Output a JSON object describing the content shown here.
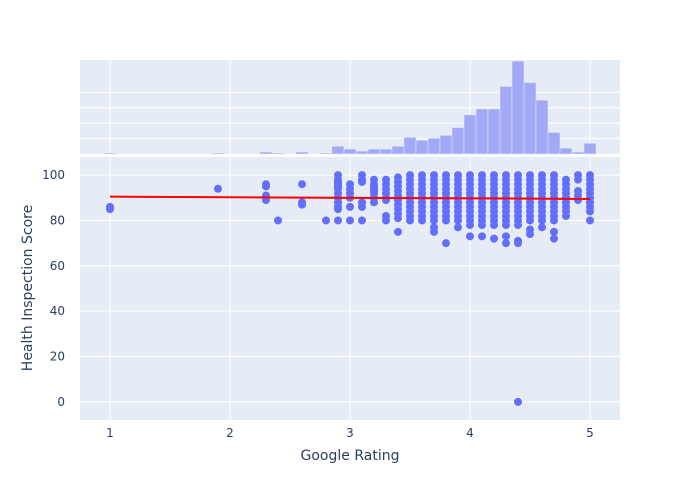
{
  "chart_data": {
    "type": "scatter",
    "xlabel": "Google Rating",
    "ylabel": "Health Inspection Score",
    "xlim": [
      0.75,
      5.25
    ],
    "ylim": [
      -8,
      108
    ],
    "x_ticks": [
      1,
      2,
      3,
      4,
      5
    ],
    "y_ticks": [
      0,
      20,
      40,
      60,
      80,
      100
    ],
    "grid": true,
    "legend": "none",
    "series": [
      {
        "type": "scatter",
        "points": [
          [
            1.0,
            86
          ],
          [
            1.0,
            85
          ],
          [
            1.9,
            94
          ],
          [
            2.3,
            96
          ],
          [
            2.3,
            95
          ],
          [
            2.3,
            91
          ],
          [
            2.3,
            89
          ],
          [
            2.4,
            80
          ],
          [
            2.6,
            96
          ],
          [
            2.6,
            88
          ],
          [
            2.6,
            87
          ],
          [
            2.8,
            80
          ],
          [
            2.9,
            100
          ],
          [
            2.9,
            98
          ],
          [
            2.9,
            97
          ],
          [
            2.9,
            96
          ],
          [
            2.9,
            95
          ],
          [
            2.9,
            94
          ],
          [
            2.9,
            92
          ],
          [
            2.9,
            90
          ],
          [
            2.9,
            88
          ],
          [
            2.9,
            86
          ],
          [
            2.9,
            85
          ],
          [
            2.9,
            80
          ],
          [
            3.0,
            96
          ],
          [
            3.0,
            94
          ],
          [
            3.0,
            92
          ],
          [
            3.0,
            90
          ],
          [
            3.0,
            86
          ],
          [
            3.0,
            80
          ],
          [
            3.1,
            100
          ],
          [
            3.1,
            98
          ],
          [
            3.1,
            97
          ],
          [
            3.1,
            88
          ],
          [
            3.1,
            86
          ],
          [
            3.1,
            80
          ],
          [
            3.2,
            98
          ],
          [
            3.2,
            96
          ],
          [
            3.2,
            95
          ],
          [
            3.2,
            94
          ],
          [
            3.2,
            93
          ],
          [
            3.2,
            92
          ],
          [
            3.2,
            90
          ],
          [
            3.2,
            88
          ],
          [
            3.3,
            98
          ],
          [
            3.3,
            96
          ],
          [
            3.3,
            94
          ],
          [
            3.3,
            92
          ],
          [
            3.3,
            90
          ],
          [
            3.3,
            89
          ],
          [
            3.3,
            82
          ],
          [
            3.3,
            80
          ],
          [
            3.4,
            99
          ],
          [
            3.4,
            97
          ],
          [
            3.4,
            95
          ],
          [
            3.4,
            93
          ],
          [
            3.4,
            91
          ],
          [
            3.4,
            89
          ],
          [
            3.4,
            87
          ],
          [
            3.4,
            85
          ],
          [
            3.4,
            83
          ],
          [
            3.4,
            81
          ],
          [
            3.4,
            75
          ],
          [
            3.5,
            100
          ],
          [
            3.5,
            98
          ],
          [
            3.5,
            96
          ],
          [
            3.5,
            94
          ],
          [
            3.5,
            92
          ],
          [
            3.5,
            90
          ],
          [
            3.5,
            88
          ],
          [
            3.5,
            86
          ],
          [
            3.5,
            84
          ],
          [
            3.5,
            82
          ],
          [
            3.5,
            80
          ],
          [
            3.6,
            100
          ],
          [
            3.6,
            98
          ],
          [
            3.6,
            96
          ],
          [
            3.6,
            94
          ],
          [
            3.6,
            92
          ],
          [
            3.6,
            90
          ],
          [
            3.6,
            88
          ],
          [
            3.6,
            86
          ],
          [
            3.6,
            84
          ],
          [
            3.6,
            82
          ],
          [
            3.6,
            80
          ],
          [
            3.7,
            100
          ],
          [
            3.7,
            98
          ],
          [
            3.7,
            96
          ],
          [
            3.7,
            94
          ],
          [
            3.7,
            92
          ],
          [
            3.7,
            90
          ],
          [
            3.7,
            88
          ],
          [
            3.7,
            86
          ],
          [
            3.7,
            84
          ],
          [
            3.7,
            82
          ],
          [
            3.7,
            80
          ],
          [
            3.7,
            77
          ],
          [
            3.7,
            75
          ],
          [
            3.8,
            100
          ],
          [
            3.8,
            98
          ],
          [
            3.8,
            96
          ],
          [
            3.8,
            94
          ],
          [
            3.8,
            92
          ],
          [
            3.8,
            90
          ],
          [
            3.8,
            88
          ],
          [
            3.8,
            86
          ],
          [
            3.8,
            84
          ],
          [
            3.8,
            82
          ],
          [
            3.8,
            80
          ],
          [
            3.8,
            70
          ],
          [
            3.9,
            100
          ],
          [
            3.9,
            98
          ],
          [
            3.9,
            96
          ],
          [
            3.9,
            94
          ],
          [
            3.9,
            92
          ],
          [
            3.9,
            90
          ],
          [
            3.9,
            88
          ],
          [
            3.9,
            86
          ],
          [
            3.9,
            84
          ],
          [
            3.9,
            82
          ],
          [
            3.9,
            80
          ],
          [
            3.9,
            77
          ],
          [
            4.0,
            100
          ],
          [
            4.0,
            98
          ],
          [
            4.0,
            96
          ],
          [
            4.0,
            94
          ],
          [
            4.0,
            92
          ],
          [
            4.0,
            90
          ],
          [
            4.0,
            88
          ],
          [
            4.0,
            86
          ],
          [
            4.0,
            84
          ],
          [
            4.0,
            82
          ],
          [
            4.0,
            80
          ],
          [
            4.0,
            78
          ],
          [
            4.0,
            73
          ],
          [
            4.1,
            100
          ],
          [
            4.1,
            98
          ],
          [
            4.1,
            96
          ],
          [
            4.1,
            94
          ],
          [
            4.1,
            92
          ],
          [
            4.1,
            90
          ],
          [
            4.1,
            88
          ],
          [
            4.1,
            86
          ],
          [
            4.1,
            84
          ],
          [
            4.1,
            82
          ],
          [
            4.1,
            80
          ],
          [
            4.1,
            78
          ],
          [
            4.1,
            73
          ],
          [
            4.2,
            100
          ],
          [
            4.2,
            98
          ],
          [
            4.2,
            96
          ],
          [
            4.2,
            94
          ],
          [
            4.2,
            92
          ],
          [
            4.2,
            90
          ],
          [
            4.2,
            88
          ],
          [
            4.2,
            86
          ],
          [
            4.2,
            84
          ],
          [
            4.2,
            82
          ],
          [
            4.2,
            80
          ],
          [
            4.2,
            78
          ],
          [
            4.2,
            72
          ],
          [
            4.3,
            100
          ],
          [
            4.3,
            98
          ],
          [
            4.3,
            96
          ],
          [
            4.3,
            94
          ],
          [
            4.3,
            92
          ],
          [
            4.3,
            90
          ],
          [
            4.3,
            88
          ],
          [
            4.3,
            86
          ],
          [
            4.3,
            84
          ],
          [
            4.3,
            82
          ],
          [
            4.3,
            80
          ],
          [
            4.3,
            78
          ],
          [
            4.3,
            73
          ],
          [
            4.3,
            70
          ],
          [
            4.4,
            100
          ],
          [
            4.4,
            98
          ],
          [
            4.4,
            96
          ],
          [
            4.4,
            94
          ],
          [
            4.4,
            92
          ],
          [
            4.4,
            90
          ],
          [
            4.4,
            88
          ],
          [
            4.4,
            86
          ],
          [
            4.4,
            84
          ],
          [
            4.4,
            82
          ],
          [
            4.4,
            80
          ],
          [
            4.4,
            78
          ],
          [
            4.4,
            71
          ],
          [
            4.4,
            70
          ],
          [
            4.4,
            0
          ],
          [
            4.5,
            100
          ],
          [
            4.5,
            98
          ],
          [
            4.5,
            96
          ],
          [
            4.5,
            94
          ],
          [
            4.5,
            92
          ],
          [
            4.5,
            90
          ],
          [
            4.5,
            88
          ],
          [
            4.5,
            86
          ],
          [
            4.5,
            84
          ],
          [
            4.5,
            82
          ],
          [
            4.5,
            80
          ],
          [
            4.5,
            76
          ],
          [
            4.5,
            74
          ],
          [
            4.6,
            100
          ],
          [
            4.6,
            98
          ],
          [
            4.6,
            96
          ],
          [
            4.6,
            94
          ],
          [
            4.6,
            92
          ],
          [
            4.6,
            90
          ],
          [
            4.6,
            88
          ],
          [
            4.6,
            86
          ],
          [
            4.6,
            84
          ],
          [
            4.6,
            82
          ],
          [
            4.6,
            80
          ],
          [
            4.6,
            77
          ],
          [
            4.7,
            100
          ],
          [
            4.7,
            98
          ],
          [
            4.7,
            96
          ],
          [
            4.7,
            94
          ],
          [
            4.7,
            92
          ],
          [
            4.7,
            90
          ],
          [
            4.7,
            88
          ],
          [
            4.7,
            86
          ],
          [
            4.7,
            84
          ],
          [
            4.7,
            82
          ],
          [
            4.7,
            80
          ],
          [
            4.7,
            75
          ],
          [
            4.7,
            72
          ],
          [
            4.8,
            98
          ],
          [
            4.8,
            96
          ],
          [
            4.8,
            94
          ],
          [
            4.8,
            92
          ],
          [
            4.8,
            90
          ],
          [
            4.8,
            88
          ],
          [
            4.8,
            86
          ],
          [
            4.8,
            84
          ],
          [
            4.8,
            82
          ],
          [
            4.9,
            100
          ],
          [
            4.9,
            98
          ],
          [
            4.9,
            93
          ],
          [
            4.9,
            91
          ],
          [
            4.9,
            89
          ],
          [
            5.0,
            100
          ],
          [
            5.0,
            98
          ],
          [
            5.0,
            96
          ],
          [
            5.0,
            94
          ],
          [
            5.0,
            92
          ],
          [
            5.0,
            90
          ],
          [
            5.0,
            88
          ],
          [
            5.0,
            86
          ],
          [
            5.0,
            84
          ],
          [
            5.0,
            80
          ]
        ]
      },
      {
        "type": "line",
        "x": [
          1.0,
          5.0
        ],
        "y": [
          90.5,
          89.5
        ]
      },
      {
        "type": "histogram",
        "bin_width": 0.1,
        "bins": [
          [
            1.0,
            1
          ],
          [
            1.9,
            1
          ],
          [
            2.3,
            2
          ],
          [
            2.4,
            1
          ],
          [
            2.6,
            2
          ],
          [
            2.8,
            1
          ],
          [
            2.9,
            8
          ],
          [
            3.0,
            5
          ],
          [
            3.1,
            3
          ],
          [
            3.2,
            5
          ],
          [
            3.3,
            5
          ],
          [
            3.4,
            8
          ],
          [
            3.5,
            17
          ],
          [
            3.6,
            14
          ],
          [
            3.7,
            16
          ],
          [
            3.8,
            19
          ],
          [
            3.9,
            27
          ],
          [
            4.0,
            40
          ],
          [
            4.1,
            46
          ],
          [
            4.2,
            46
          ],
          [
            4.3,
            69
          ],
          [
            4.4,
            95
          ],
          [
            4.5,
            73
          ],
          [
            4.6,
            55
          ],
          [
            4.7,
            22
          ],
          [
            4.8,
            6
          ],
          [
            4.9,
            2
          ],
          [
            5.0,
            11
          ]
        ]
      }
    ]
  },
  "colors": {
    "plot_bg": "#e5ecf6",
    "grid": "#ffffff",
    "scatter": "#636efa",
    "histogram": "#a4a9f7",
    "trendline": "#ff0000"
  }
}
